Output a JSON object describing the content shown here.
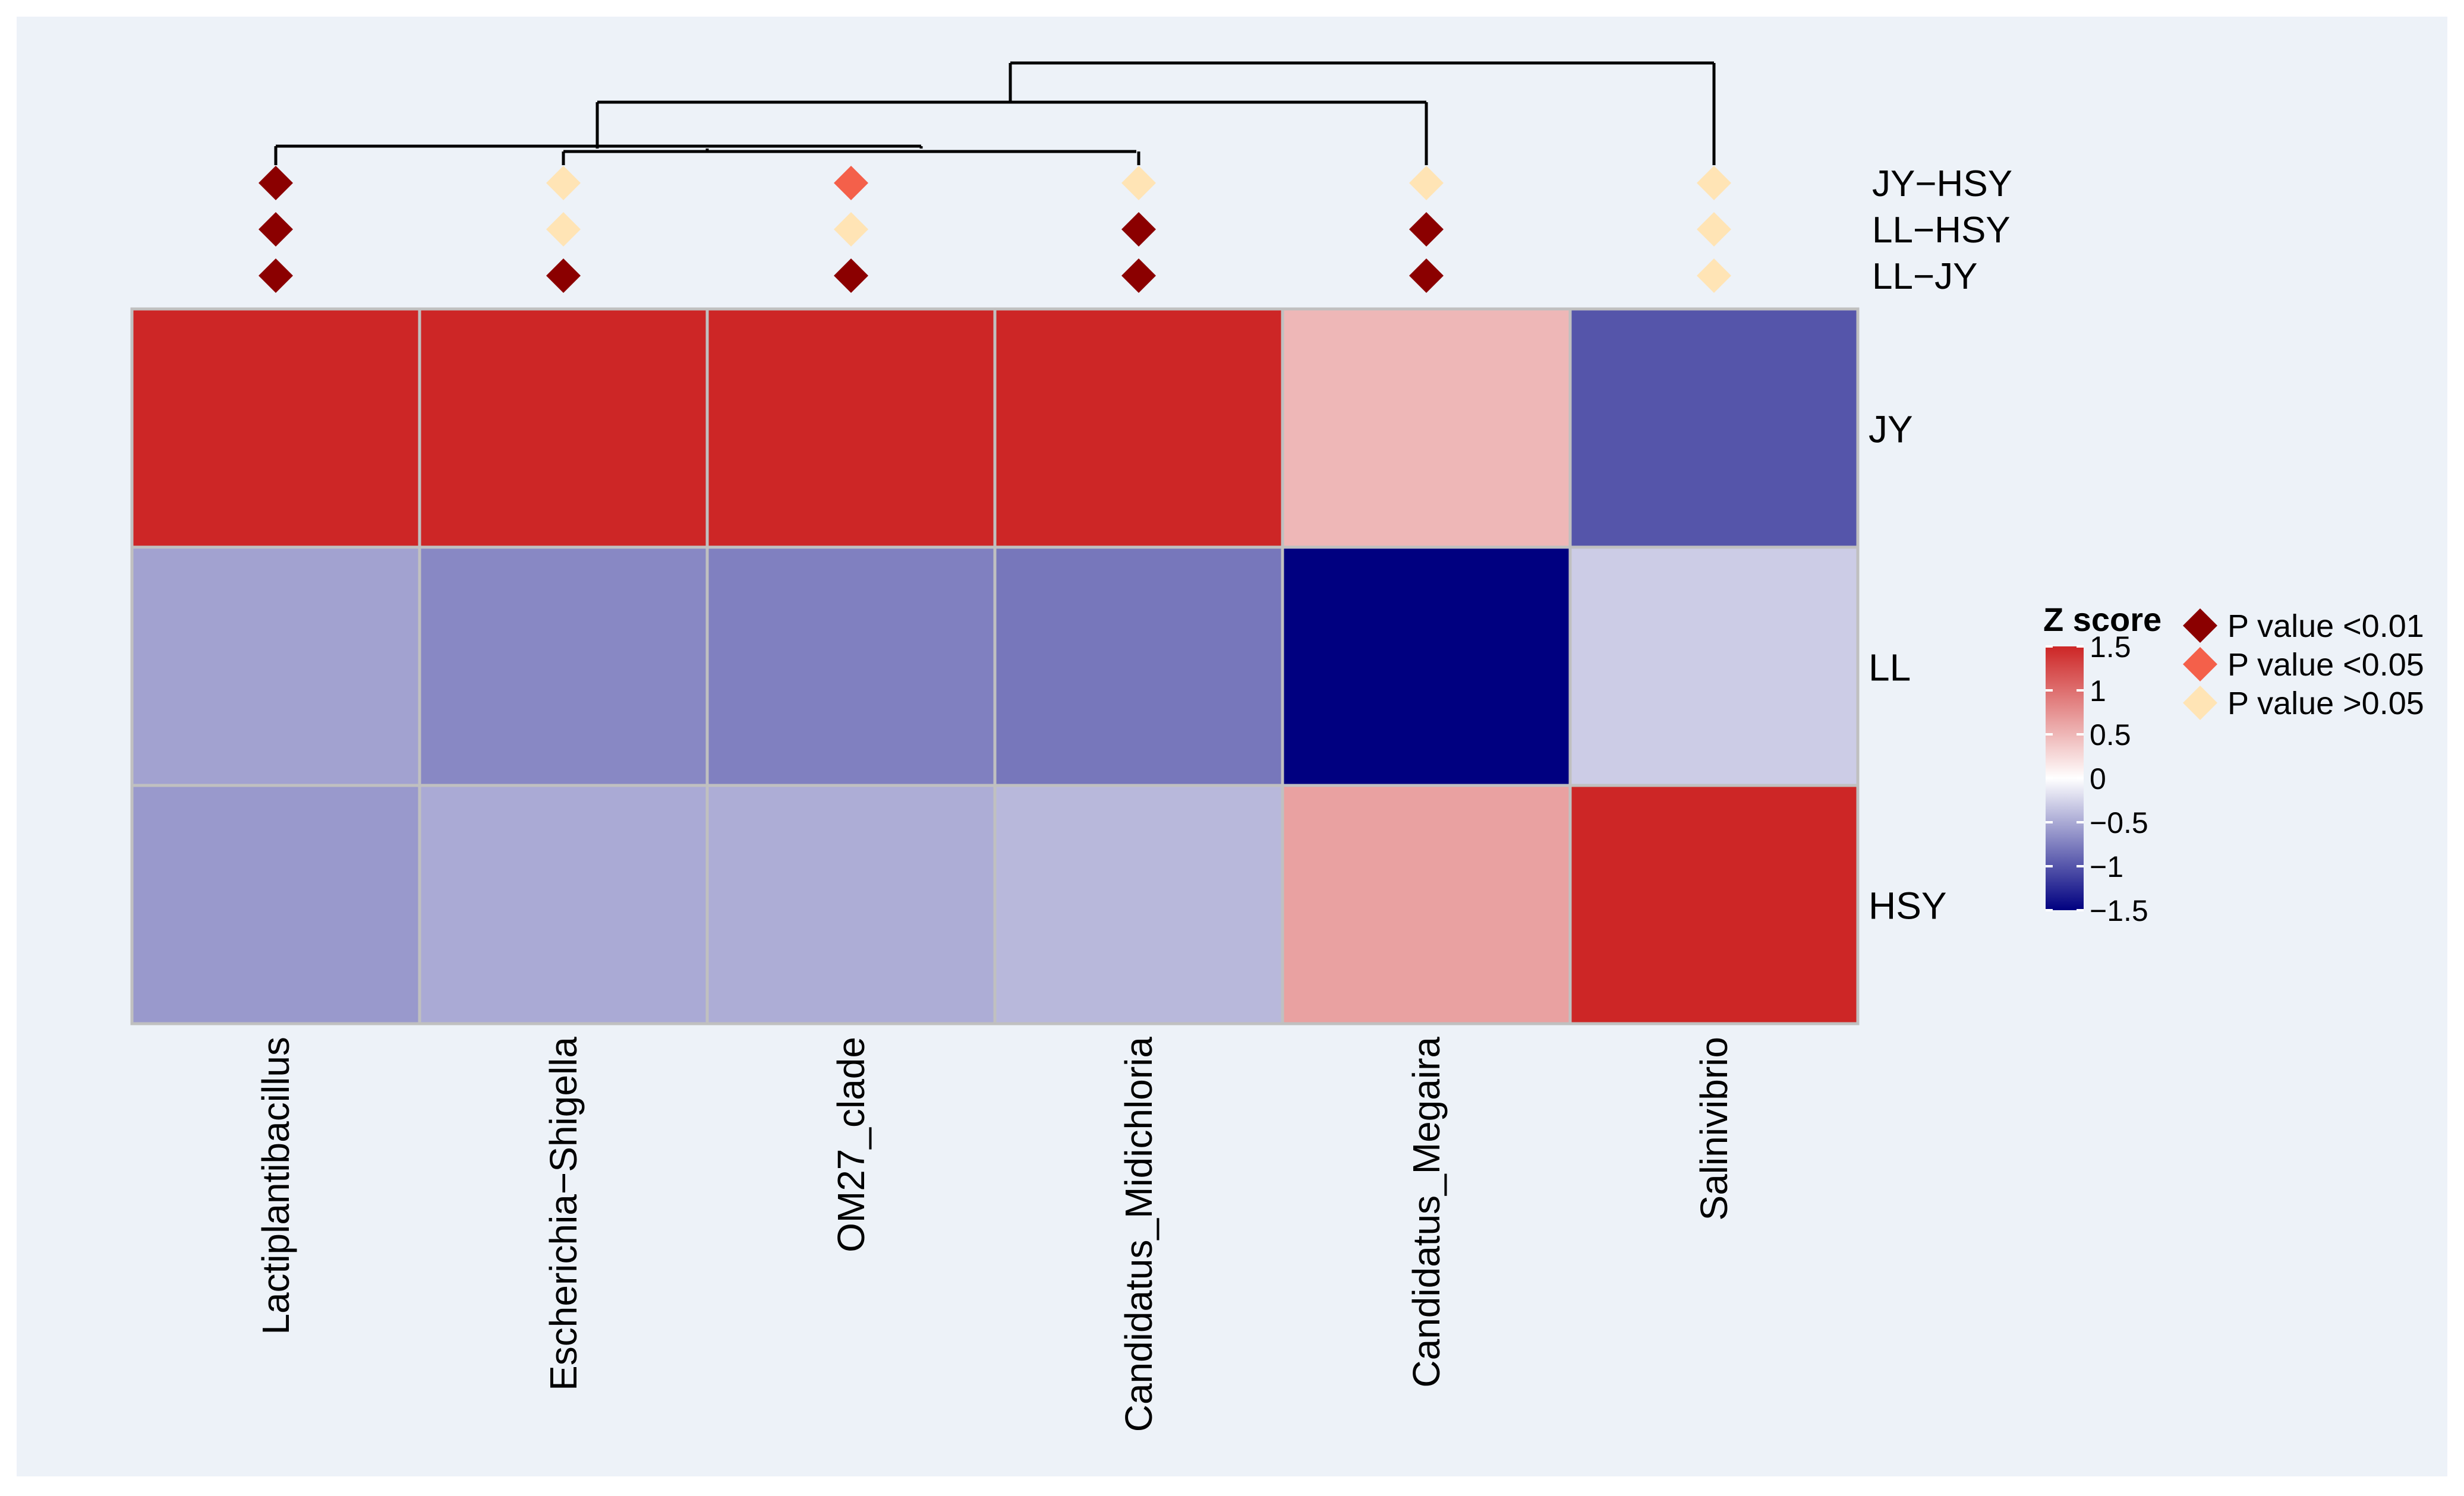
{
  "chart_data": {
    "type": "heatmap",
    "title": "",
    "columns": [
      "Lactiplantibacillus",
      "Escherichia−Shigella",
      "OM27_clade",
      "Candidatus_Midichloria",
      "Candidatus_Megaira",
      "Salinivibrio"
    ],
    "rows": [
      "JY",
      "LL",
      "HSY"
    ],
    "values": [
      [
        1.5,
        1.5,
        1.5,
        1.5,
        0.5,
        -1.0
      ],
      [
        -0.55,
        -0.7,
        -0.75,
        -0.8,
        -1.5,
        -0.3
      ],
      [
        -0.6,
        -0.5,
        -0.48,
        -0.42,
        0.65,
        1.5
      ]
    ],
    "comparisons": [
      "JY−HSY",
      "LL−HSY",
      "LL−JY"
    ],
    "significance": [
      [
        "p01",
        "p_ns",
        "p05",
        "p_ns",
        "p_ns",
        "p_ns"
      ],
      [
        "p01",
        "p_ns",
        "p_ns",
        "p01",
        "p01",
        "p_ns"
      ],
      [
        "p01",
        "p01",
        "p01",
        "p01",
        "p01",
        "p_ns"
      ]
    ],
    "colorbar": {
      "title": "Z score",
      "range": [
        -1.5,
        1.5
      ],
      "ticks": [
        "1.5",
        "1",
        "0.5",
        "0",
        "−0.5",
        "−1",
        "−1.5"
      ],
      "tick_values": [
        1.5,
        1,
        0.5,
        0,
        -0.5,
        -1,
        -1.5
      ],
      "colors": {
        "low": "#000080",
        "mid": "#ffffff",
        "high": "#cd2626"
      }
    },
    "significance_legend": [
      {
        "key": "p01",
        "label": "P value <0.01",
        "color": "#8b0000"
      },
      {
        "key": "p05",
        "label": "P value <0.05",
        "color": "#f4604a"
      },
      {
        "key": "p_ns",
        "label": "P value >0.05",
        "color": "#ffe4b5"
      }
    ],
    "column_dendrogram": "present",
    "colors": {
      "panel_background": "#edf2f8",
      "grid": "#c0c0c0",
      "dendrogram": "#000000"
    }
  }
}
